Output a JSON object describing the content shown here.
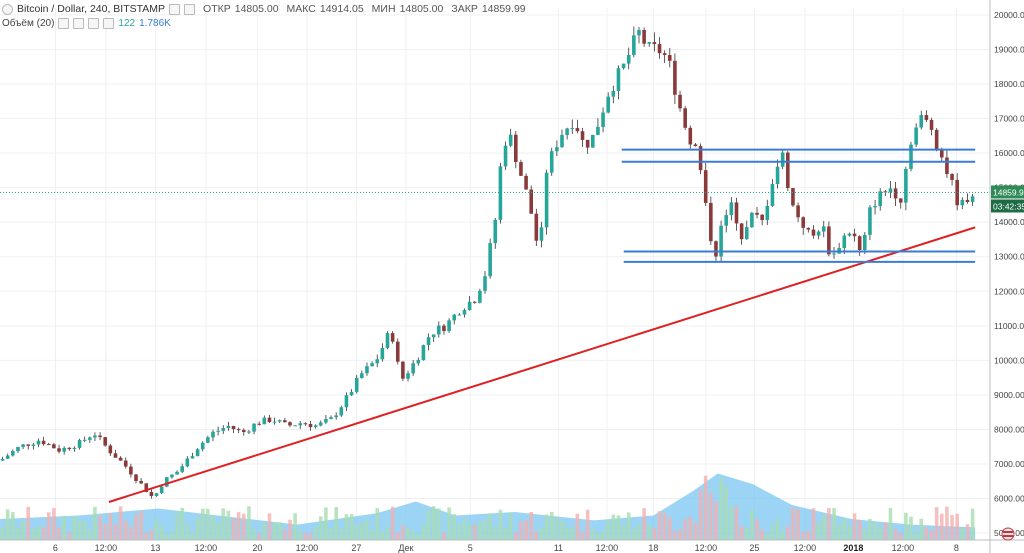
{
  "header": {
    "symbol": "Bitcoin / Dollar, 240, BITSTAMP",
    "open_label": "ОТКР",
    "open_value": "14805.00",
    "high_label": "МАКС",
    "high_value": "14914.05",
    "low_label": "МИН",
    "low_value": "14805.00",
    "close_label": "ЗАКР",
    "close_value": "14859.99",
    "volume_label": "Объём (20)",
    "volume_value": "122",
    "volume_ma_value": "1.786K"
  },
  "last_price_tag": "14859.99",
  "countdown_tag": "03:42:35",
  "colors": {
    "up": "#26a69a",
    "down": "#8b3a3a",
    "wick": "#333333",
    "trendline": "#e02020",
    "levels": "#3a7bd5",
    "volume_area": "#79c5f2",
    "volume_up": "#a9dcb0",
    "volume_down": "#f2b0b0",
    "tag_green": "#2e8b57",
    "tag_dark": "#1e6b45"
  },
  "chart_data": {
    "type": "candlestick",
    "price_range": [
      4800,
      20200
    ],
    "y_ticks": [
      "20000.00",
      "19000.00",
      "18000.00",
      "17000.00",
      "16000.00",
      "15000.00",
      "14000.00",
      "13000.00",
      "12000.00",
      "11000.00",
      "10000.00",
      "9000.00",
      "8000.00",
      "7000.00",
      "6000.00",
      "5000.00"
    ],
    "x_ticks": [
      {
        "label": "6",
        "t": 0.056
      },
      {
        "label": "12:00",
        "t": 0.107
      },
      {
        "label": "13",
        "t": 0.157
      },
      {
        "label": "12:00",
        "t": 0.208
      },
      {
        "label": "20",
        "t": 0.26
      },
      {
        "label": "12:00",
        "t": 0.31
      },
      {
        "label": "27",
        "t": 0.36
      },
      {
        "label": "Дек",
        "t": 0.41
      },
      {
        "label": "5",
        "t": 0.475
      },
      {
        "label": "11",
        "t": 0.564
      },
      {
        "label": "12:00",
        "t": 0.613
      },
      {
        "label": "18",
        "t": 0.66
      },
      {
        "label": "12:00",
        "t": 0.713
      },
      {
        "label": "25",
        "t": 0.762
      },
      {
        "label": "12:00",
        "t": 0.813
      },
      {
        "label": "2018",
        "t": 0.862,
        "bold": true
      },
      {
        "label": "12:00",
        "t": 0.912
      },
      {
        "label": "8",
        "t": 0.966
      }
    ],
    "close_path": [
      [
        0.0,
        7100
      ],
      [
        0.02,
        7500
      ],
      [
        0.04,
        7700
      ],
      [
        0.06,
        7400
      ],
      [
        0.08,
        7600
      ],
      [
        0.095,
        7900
      ],
      [
        0.11,
        7400
      ],
      [
        0.125,
        7000
      ],
      [
        0.14,
        6500
      ],
      [
        0.155,
        6000
      ],
      [
        0.165,
        6500
      ],
      [
        0.18,
        6800
      ],
      [
        0.2,
        7500
      ],
      [
        0.215,
        7900
      ],
      [
        0.23,
        8100
      ],
      [
        0.245,
        7900
      ],
      [
        0.26,
        8200
      ],
      [
        0.275,
        8300
      ],
      [
        0.29,
        8100
      ],
      [
        0.305,
        8200
      ],
      [
        0.32,
        8100
      ],
      [
        0.335,
        8300
      ],
      [
        0.35,
        8900
      ],
      [
        0.365,
        9600
      ],
      [
        0.38,
        10000
      ],
      [
        0.395,
        10900
      ],
      [
        0.405,
        9400
      ],
      [
        0.42,
        10000
      ],
      [
        0.435,
        10800
      ],
      [
        0.45,
        11000
      ],
      [
        0.465,
        11500
      ],
      [
        0.48,
        11800
      ],
      [
        0.49,
        12500
      ],
      [
        0.5,
        14000
      ],
      [
        0.508,
        16300
      ],
      [
        0.515,
        16500
      ],
      [
        0.525,
        15500
      ],
      [
        0.535,
        14500
      ],
      [
        0.545,
        13000
      ],
      [
        0.552,
        15500
      ],
      [
        0.565,
        16500
      ],
      [
        0.58,
        17000
      ],
      [
        0.59,
        16200
      ],
      [
        0.6,
        16500
      ],
      [
        0.615,
        17800
      ],
      [
        0.63,
        18500
      ],
      [
        0.645,
        19500
      ],
      [
        0.655,
        19000
      ],
      [
        0.665,
        19000
      ],
      [
        0.675,
        18700
      ],
      [
        0.685,
        17500
      ],
      [
        0.695,
        16500
      ],
      [
        0.705,
        16000
      ],
      [
        0.715,
        14000
      ],
      [
        0.722,
        13000
      ],
      [
        0.73,
        14000
      ],
      [
        0.74,
        14500
      ],
      [
        0.75,
        13500
      ],
      [
        0.76,
        14200
      ],
      [
        0.77,
        14000
      ],
      [
        0.78,
        15200
      ],
      [
        0.79,
        16000
      ],
      [
        0.8,
        14500
      ],
      [
        0.81,
        14000
      ],
      [
        0.82,
        13500
      ],
      [
        0.83,
        14000
      ],
      [
        0.84,
        12900
      ],
      [
        0.85,
        13500
      ],
      [
        0.86,
        13800
      ],
      [
        0.87,
        13000
      ],
      [
        0.88,
        14500
      ],
      [
        0.89,
        14800
      ],
      [
        0.9,
        15000
      ],
      [
        0.91,
        14700
      ],
      [
        0.92,
        16400
      ],
      [
        0.93,
        17000
      ],
      [
        0.94,
        16800
      ],
      [
        0.95,
        16000
      ],
      [
        0.96,
        15200
      ],
      [
        0.97,
        14400
      ],
      [
        0.98,
        14860
      ]
    ],
    "trendline": [
      [
        0.11,
        5900
      ],
      [
        0.985,
        13850
      ]
    ],
    "levels": [
      {
        "price": 16100,
        "t_start": 0.628,
        "t_end": 0.985
      },
      {
        "price": 15750,
        "t_start": 0.628,
        "t_end": 0.985
      },
      {
        "price": 13150,
        "t_start": 0.63,
        "t_end": 0.985
      },
      {
        "price": 12850,
        "t_start": 0.63,
        "t_end": 0.985
      }
    ],
    "last_price": 14859.99,
    "volume_ma_path": [
      [
        0.0,
        0.3
      ],
      [
        0.08,
        0.35
      ],
      [
        0.16,
        0.45
      ],
      [
        0.22,
        0.35
      ],
      [
        0.3,
        0.22
      ],
      [
        0.38,
        0.38
      ],
      [
        0.42,
        0.55
      ],
      [
        0.46,
        0.35
      ],
      [
        0.52,
        0.4
      ],
      [
        0.6,
        0.28
      ],
      [
        0.66,
        0.35
      ],
      [
        0.7,
        0.7
      ],
      [
        0.725,
        0.95
      ],
      [
        0.76,
        0.8
      ],
      [
        0.8,
        0.5
      ],
      [
        0.86,
        0.3
      ],
      [
        0.92,
        0.22
      ],
      [
        0.985,
        0.18
      ]
    ]
  }
}
